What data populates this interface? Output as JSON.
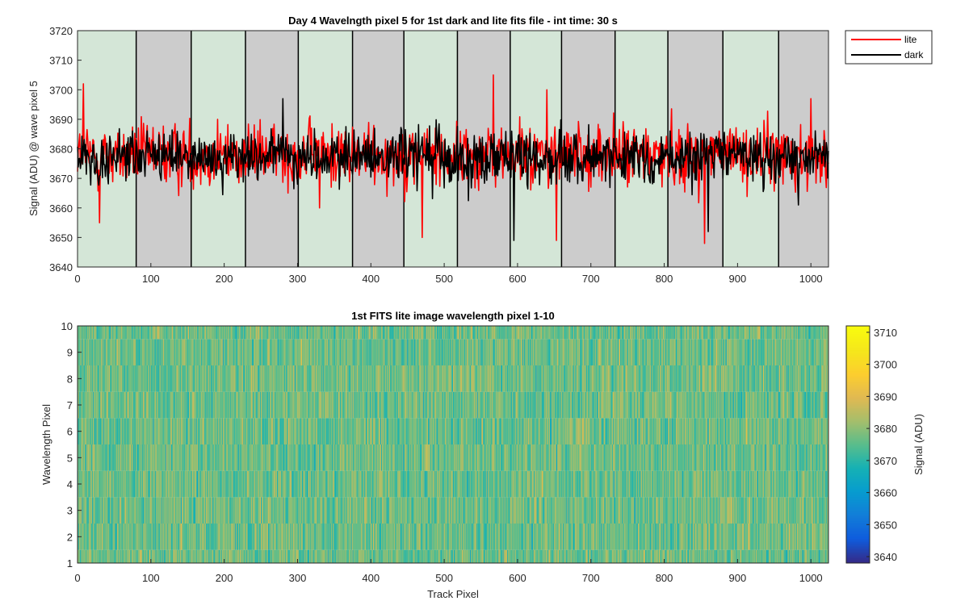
{
  "chart_data": [
    {
      "type": "line",
      "title": "Day 4 Wavelngth pixel 5 for 1st dark and lite fits file - int time: 30 s",
      "xlabel": "",
      "ylabel": "Signal (ADU) @ wave pixel 5",
      "xlim": [
        0,
        1024
      ],
      "ylim": [
        3640,
        3720
      ],
      "x_ticks": [
        "0",
        "100",
        "200",
        "300",
        "400",
        "500",
        "600",
        "700",
        "800",
        "900",
        "1000"
      ],
      "y_ticks": [
        "3640",
        "3650",
        "3660",
        "3670",
        "3680",
        "3690",
        "3700",
        "3710",
        "3720"
      ],
      "legend": {
        "position": "outside-top-right",
        "entries": [
          "lite",
          "dark"
        ]
      },
      "background_bands": {
        "boundaries": [
          0,
          80,
          155,
          229,
          301,
          375,
          445,
          518,
          590,
          660,
          733,
          805,
          880,
          956,
          1024
        ],
        "colors": [
          "#d4e6d7",
          "#cccccc"
        ],
        "pattern": "alternating, starting with green"
      },
      "series": [
        {
          "name": "lite",
          "color": "#ff0000",
          "mean": 3678,
          "spread": 7.5,
          "min": 3649,
          "max": 3705,
          "points": [
            [
              8,
              3702
            ],
            [
              30,
              3655
            ],
            [
              330,
              3660
            ],
            [
              470,
              3650
            ],
            [
              567,
              3705
            ],
            [
              640,
              3700
            ],
            [
              653,
              3649
            ],
            [
              855,
              3648
            ],
            [
              1000,
              3697
            ]
          ]
        },
        {
          "name": "dark",
          "color": "#000000",
          "mean": 3677,
          "spread": 6.5,
          "min": 3649,
          "max": 3697,
          "points": [
            [
              280,
              3697
            ],
            [
              595,
              3649
            ],
            [
              860,
              3652
            ],
            [
              983,
              3661
            ]
          ]
        }
      ]
    },
    {
      "type": "heatmap",
      "title": "1st FITS lite image wavelength pixel 1-10",
      "xlabel": "Track Pixel",
      "ylabel": "Wavelength Pixel",
      "xlim": [
        0,
        1024
      ],
      "ylim": [
        1,
        10
      ],
      "rows": 10,
      "columns": 1024,
      "x_ticks": [
        "0",
        "100",
        "200",
        "300",
        "400",
        "500",
        "600",
        "700",
        "800",
        "900",
        "1000"
      ],
      "y_ticks": [
        "1",
        "2",
        "3",
        "4",
        "5",
        "6",
        "7",
        "8",
        "9",
        "10"
      ],
      "colorbar": {
        "label": "Signal (ADU)",
        "range": [
          3638,
          3712
        ],
        "ticks": [
          "3640",
          "3650",
          "3660",
          "3670",
          "3680",
          "3690",
          "3700",
          "3710"
        ],
        "colormap": "parula"
      },
      "value_mean": 3677,
      "value_spread": 7
    }
  ]
}
